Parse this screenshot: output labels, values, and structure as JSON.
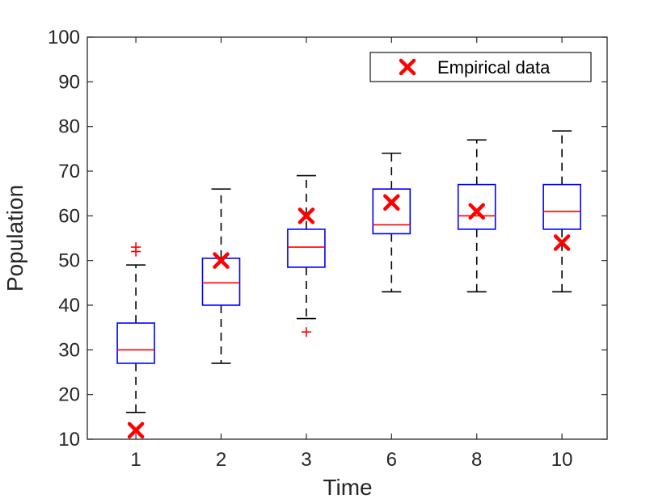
{
  "chart_data": {
    "type": "boxplot",
    "title": "",
    "xlabel": "Time",
    "ylabel": "Population",
    "ylim": [
      10,
      100
    ],
    "yticks": [
      10,
      20,
      30,
      40,
      50,
      60,
      70,
      80,
      90,
      100
    ],
    "categories": [
      "1",
      "2",
      "3",
      "6",
      "8",
      "10"
    ],
    "boxes": [
      {
        "category": "1",
        "whisker_low": 16,
        "q1": 27,
        "median": 30,
        "q3": 36,
        "whisker_high": 49,
        "outliers": [
          52,
          53
        ]
      },
      {
        "category": "2",
        "whisker_low": 27,
        "q1": 40,
        "median": 45,
        "q3": 50.5,
        "whisker_high": 66,
        "outliers": []
      },
      {
        "category": "3",
        "whisker_low": 37,
        "q1": 48.5,
        "median": 53,
        "q3": 57,
        "whisker_high": 69,
        "outliers": [
          34
        ]
      },
      {
        "category": "6",
        "whisker_low": 43,
        "q1": 56,
        "median": 58,
        "q3": 66,
        "whisker_high": 74,
        "outliers": []
      },
      {
        "category": "8",
        "whisker_low": 43,
        "q1": 57,
        "median": 60,
        "q3": 67,
        "whisker_high": 77,
        "outliers": []
      },
      {
        "category": "10",
        "whisker_low": 43,
        "q1": 57,
        "median": 61,
        "q3": 67,
        "whisker_high": 79,
        "outliers": []
      }
    ],
    "empirical_series": {
      "name": "Empirical data",
      "values": [
        12,
        50,
        60,
        63,
        61,
        54
      ]
    },
    "legend": {
      "entries": [
        "Empirical data"
      ],
      "location": "top-right"
    },
    "grid": false,
    "colors": {
      "box": "#0000ff",
      "median": "#ff0000",
      "whisker": "#000000",
      "outlier": "#ff0000",
      "empirical": "#ff0000",
      "axis": "#262626"
    }
  }
}
